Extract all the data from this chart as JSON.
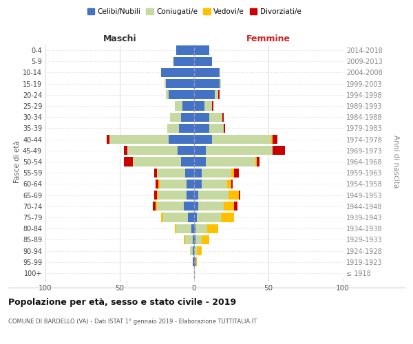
{
  "age_groups": [
    "100+",
    "95-99",
    "90-94",
    "85-89",
    "80-84",
    "75-79",
    "70-74",
    "65-69",
    "60-64",
    "55-59",
    "50-54",
    "45-49",
    "40-44",
    "35-39",
    "30-34",
    "25-29",
    "20-24",
    "15-19",
    "10-14",
    "5-9",
    "0-4"
  ],
  "birth_years": [
    "≤ 1918",
    "1919-1923",
    "1924-1928",
    "1929-1933",
    "1934-1938",
    "1939-1943",
    "1944-1948",
    "1949-1953",
    "1954-1958",
    "1959-1963",
    "1964-1968",
    "1969-1973",
    "1974-1978",
    "1979-1983",
    "1984-1988",
    "1989-1993",
    "1994-1998",
    "1999-2003",
    "2004-2008",
    "2009-2013",
    "2014-2018"
  ],
  "colors": {
    "celibi": "#4472c4",
    "coniugati": "#c5d9a0",
    "vedovi": "#ffc000",
    "divorziati": "#cc0000"
  },
  "maschi": {
    "celibi": [
      0,
      1,
      1,
      1,
      2,
      4,
      7,
      5,
      5,
      6,
      9,
      11,
      17,
      10,
      9,
      8,
      17,
      19,
      22,
      14,
      12
    ],
    "coniugati": [
      0,
      0,
      2,
      5,
      10,
      17,
      18,
      19,
      18,
      19,
      32,
      34,
      40,
      8,
      7,
      5,
      2,
      1,
      0,
      0,
      0
    ],
    "vedovi": [
      0,
      0,
      0,
      1,
      1,
      1,
      1,
      1,
      1,
      0,
      0,
      0,
      0,
      0,
      0,
      0,
      0,
      0,
      0,
      0,
      0
    ],
    "divorziati": [
      0,
      0,
      0,
      0,
      0,
      0,
      2,
      2,
      2,
      2,
      6,
      2,
      2,
      0,
      0,
      0,
      0,
      0,
      0,
      0,
      0
    ]
  },
  "femmine": {
    "nubili": [
      0,
      1,
      0,
      1,
      1,
      2,
      3,
      3,
      5,
      5,
      8,
      8,
      12,
      10,
      10,
      7,
      14,
      17,
      17,
      12,
      10
    ],
    "coniugate": [
      0,
      0,
      2,
      4,
      8,
      16,
      17,
      20,
      17,
      20,
      33,
      45,
      40,
      10,
      9,
      5,
      2,
      1,
      0,
      0,
      0
    ],
    "vedove": [
      0,
      1,
      3,
      5,
      7,
      9,
      7,
      7,
      3,
      2,
      1,
      0,
      1,
      0,
      0,
      0,
      0,
      0,
      0,
      0,
      0
    ],
    "divorziate": [
      0,
      0,
      0,
      0,
      0,
      0,
      2,
      1,
      1,
      3,
      2,
      8,
      3,
      1,
      1,
      1,
      1,
      0,
      0,
      0,
      0
    ]
  },
  "xlim": 100,
  "title": "Popolazione per età, sesso e stato civile - 2019",
  "subtitle": "COMUNE DI BARDELLO (VA) - Dati ISTAT 1° gennaio 2019 - Elaborazione TUTTITALIA.IT",
  "ylabel_left": "Fasce di età",
  "ylabel_right": "Anni di nascita",
  "xlabel_left": "Maschi",
  "xlabel_right": "Femmine",
  "legend_labels": [
    "Celibi/Nubili",
    "Coniugati/e",
    "Vedovi/e",
    "Divorziati/e"
  ]
}
